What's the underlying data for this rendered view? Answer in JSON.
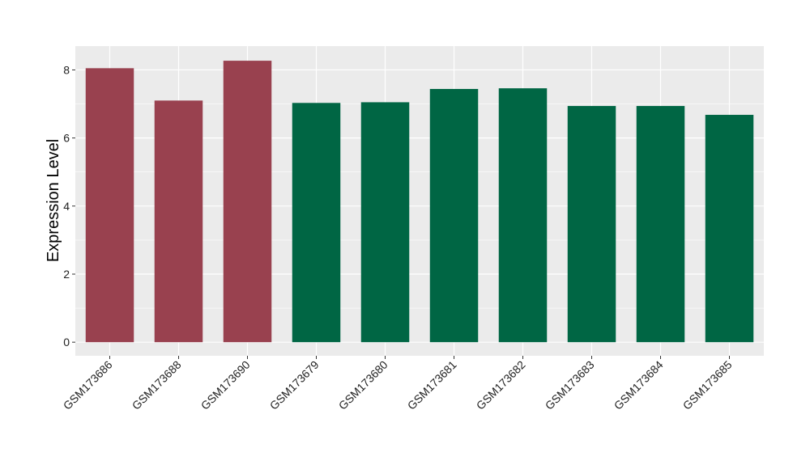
{
  "chart_data": {
    "type": "bar",
    "ylabel": "Expression Level",
    "xlabel": "",
    "categories": [
      "GSM173686",
      "GSM173688",
      "GSM173690",
      "GSM173679",
      "GSM173680",
      "GSM173681",
      "GSM173682",
      "GSM173683",
      "GSM173684",
      "GSM173685"
    ],
    "values": [
      8.05,
      7.1,
      8.27,
      7.03,
      7.05,
      7.44,
      7.46,
      6.94,
      6.94,
      6.68
    ],
    "colors": [
      "#99414f",
      "#99414f",
      "#99414f",
      "#006644",
      "#006644",
      "#006644",
      "#006644",
      "#006644",
      "#006644",
      "#006644"
    ],
    "yticks": [
      0,
      2,
      4,
      6,
      8
    ],
    "ylim": [
      -0.4,
      8.7
    ],
    "grid": true,
    "panel_background": "#ebebeb",
    "gridline_color": "#ffffff"
  }
}
